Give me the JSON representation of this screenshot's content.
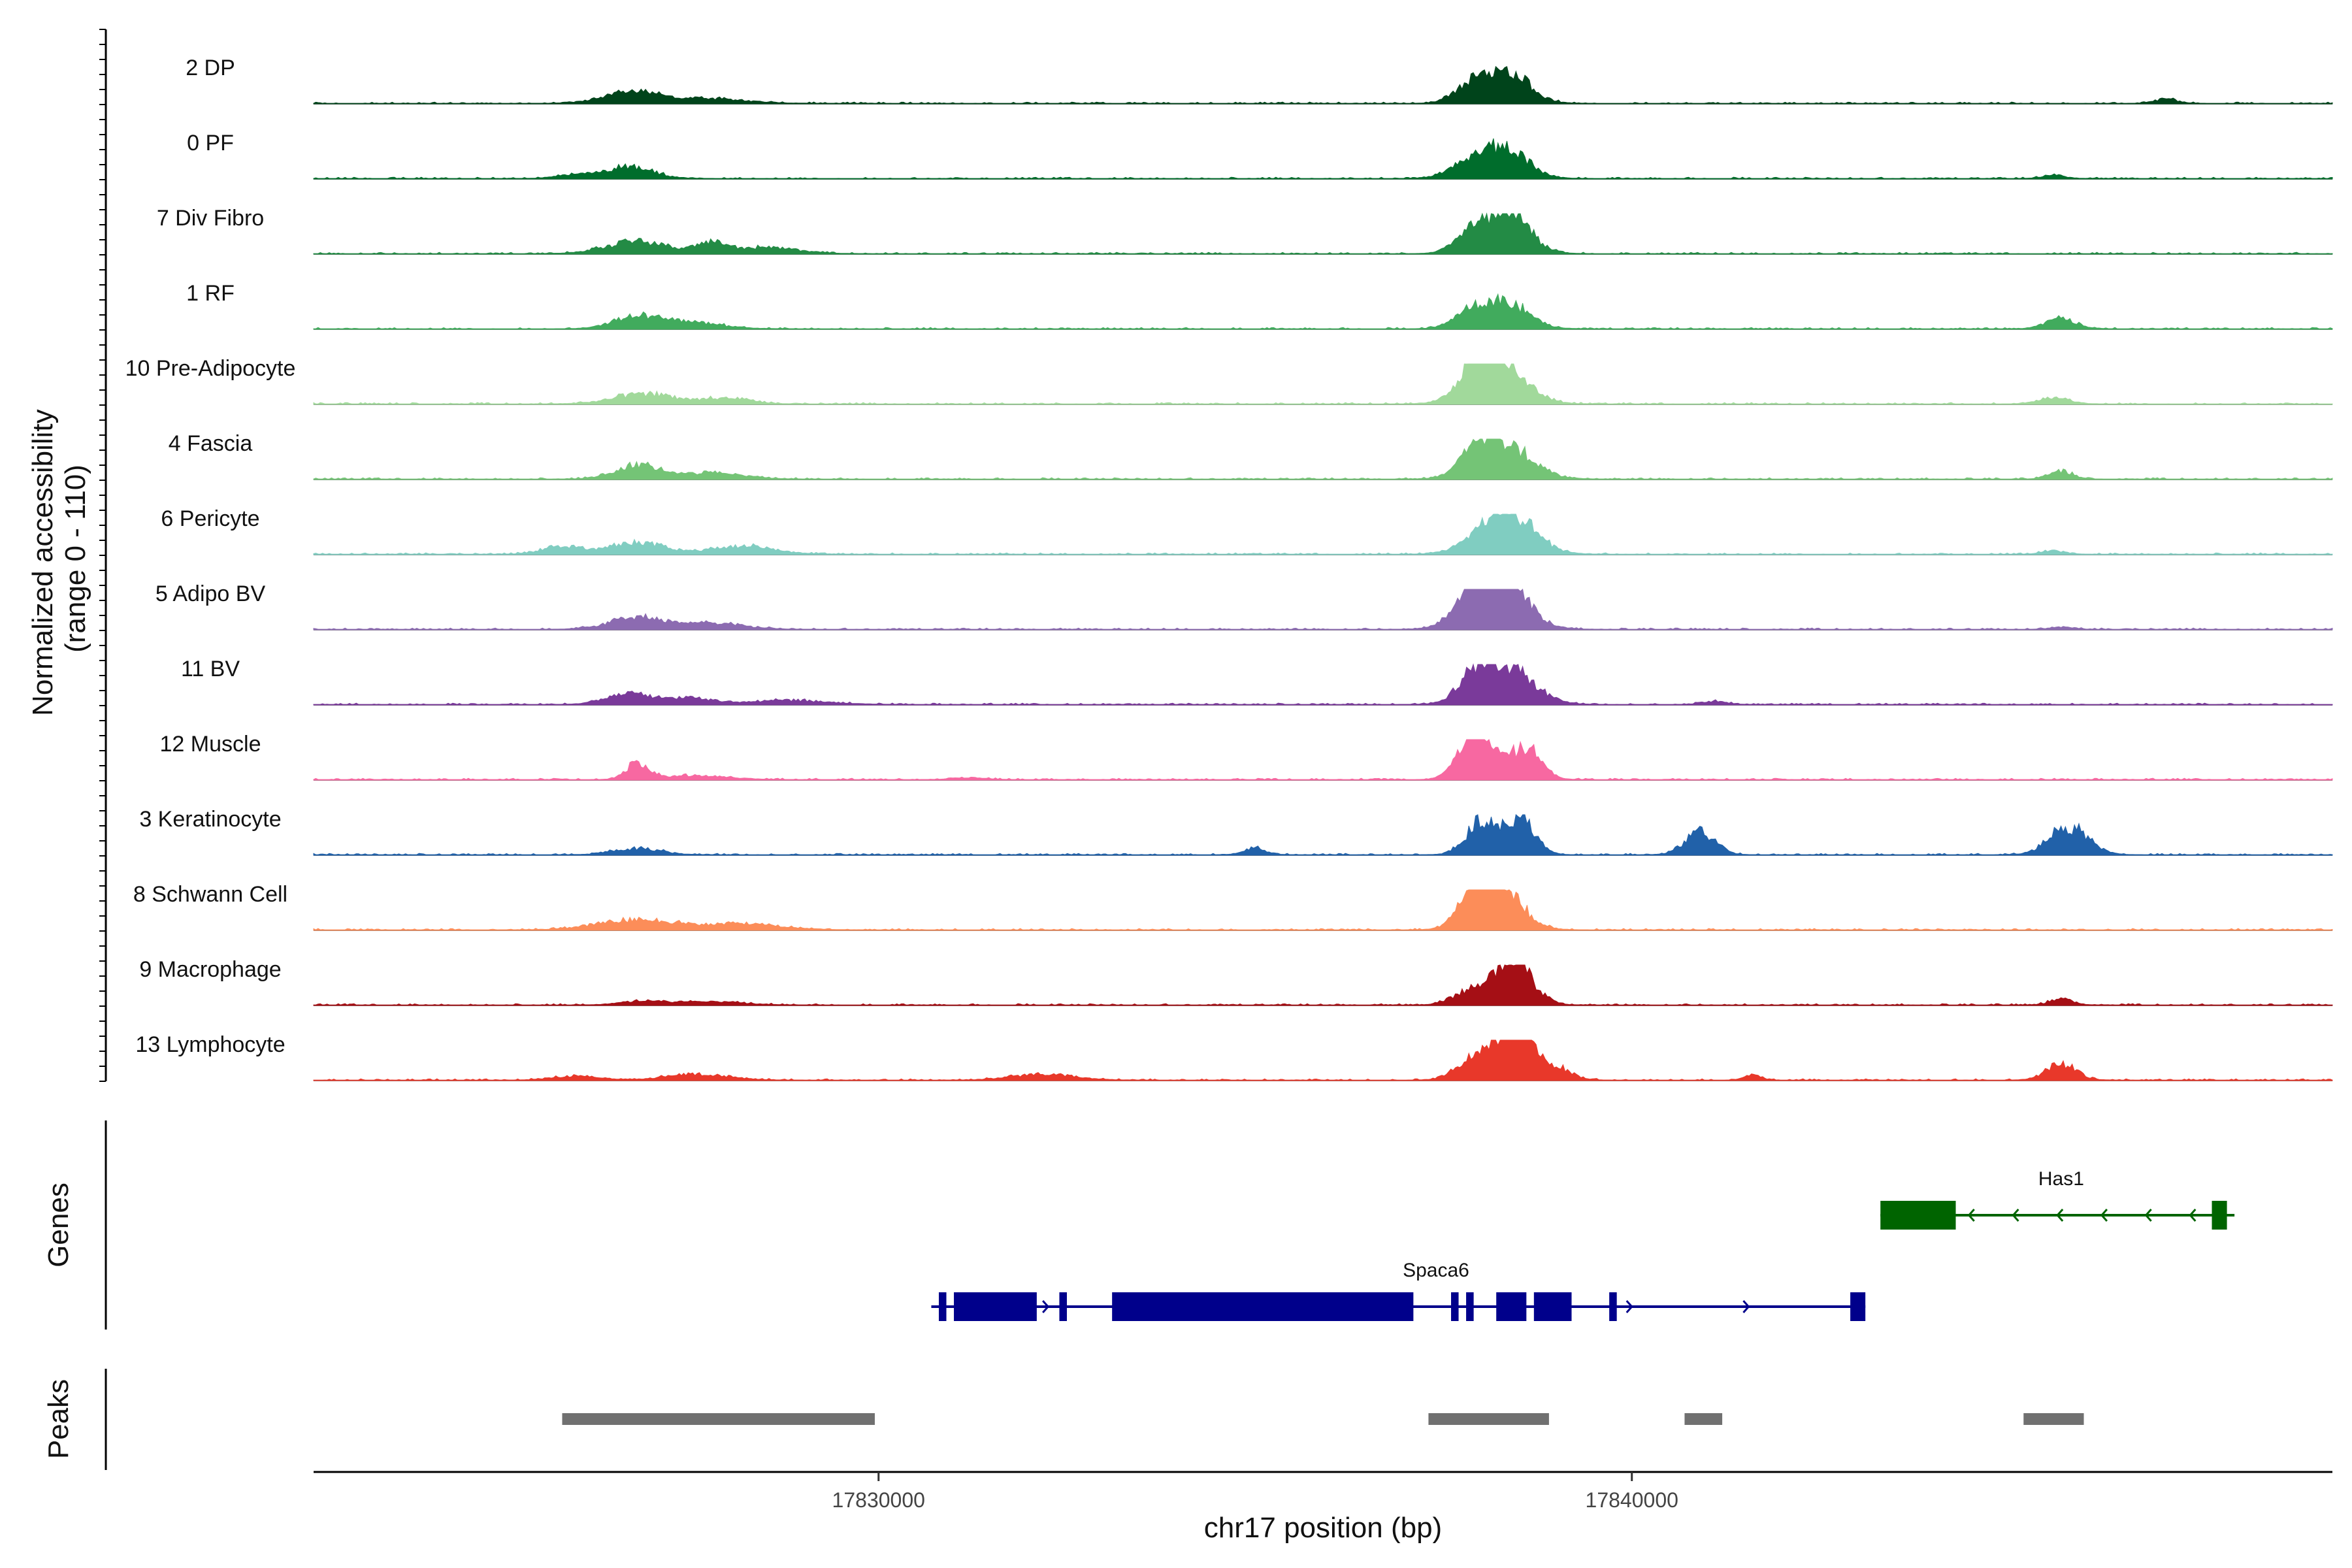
{
  "chart_data": {
    "type": "area",
    "title": "",
    "y_axis_title_lines": [
      "Normalized accessibility",
      "(range 0 - 110)"
    ],
    "y_range": [
      0,
      110
    ],
    "x_label": "chr17 position (bp)",
    "x_ticks": [
      {
        "value": 17830000,
        "label": "17830000"
      },
      {
        "value": 17840000,
        "label": "17840000"
      }
    ],
    "x_range": [
      17822500,
      17849300
    ],
    "series": [
      {
        "name": "2 DP",
        "color": "#00441b",
        "peaks": [
          [
            17826700,
            0.3,
            350
          ],
          [
            17827700,
            0.12,
            500
          ],
          [
            17838300,
            0.85,
            300
          ],
          [
            17837800,
            0.3,
            200
          ],
          [
            17847100,
            0.1,
            150
          ]
        ]
      },
      {
        "name": "0 PF",
        "color": "#006d2c",
        "peaks": [
          [
            17826700,
            0.3,
            300
          ],
          [
            17826000,
            0.1,
            250
          ],
          [
            17838300,
            0.75,
            300
          ],
          [
            17837800,
            0.3,
            250
          ],
          [
            17845600,
            0.08,
            150
          ]
        ]
      },
      {
        "name": "7 Div Fibro",
        "color": "#238b45",
        "peaks": [
          [
            17826800,
            0.3,
            400
          ],
          [
            17827800,
            0.25,
            200
          ],
          [
            17828500,
            0.15,
            400
          ],
          [
            17838300,
            1.1,
            300
          ],
          [
            17837800,
            0.3,
            200
          ]
        ]
      },
      {
        "name": "1 RF",
        "color": "#41ab5d",
        "peaks": [
          [
            17826800,
            0.3,
            300
          ],
          [
            17827500,
            0.15,
            400
          ],
          [
            17838300,
            0.7,
            300
          ],
          [
            17837800,
            0.3,
            200
          ],
          [
            17845700,
            0.25,
            200
          ]
        ]
      },
      {
        "name": "10 Pre-Adipocyte",
        "color": "#a1d99b",
        "peaks": [
          [
            17826900,
            0.25,
            400
          ],
          [
            17828000,
            0.15,
            300
          ],
          [
            17838200,
            1.1,
            350
          ],
          [
            17837900,
            0.6,
            150
          ],
          [
            17845600,
            0.15,
            200
          ]
        ]
      },
      {
        "name": "4 Fascia",
        "color": "#74c476",
        "peaks": [
          [
            17826800,
            0.35,
            300
          ],
          [
            17827800,
            0.15,
            400
          ],
          [
            17838300,
            0.9,
            350
          ],
          [
            17837900,
            0.4,
            200
          ],
          [
            17845700,
            0.2,
            150
          ]
        ]
      },
      {
        "name": "6 Pericyte",
        "color": "#80cdc1",
        "peaks": [
          [
            17825800,
            0.2,
            250
          ],
          [
            17826800,
            0.3,
            350
          ],
          [
            17828200,
            0.2,
            400
          ],
          [
            17838300,
            1.15,
            350
          ],
          [
            17845600,
            0.08,
            150
          ]
        ]
      },
      {
        "name": "5 Adipo BV",
        "color": "#8c6bb1",
        "peaks": [
          [
            17826800,
            0.3,
            350
          ],
          [
            17827800,
            0.15,
            400
          ],
          [
            17838200,
            1.45,
            350
          ],
          [
            17837900,
            0.5,
            200
          ],
          [
            17845700,
            0.05,
            150
          ]
        ]
      },
      {
        "name": "11 BV",
        "color": "#7a3a9a",
        "peaks": [
          [
            17826700,
            0.25,
            300
          ],
          [
            17827500,
            0.15,
            300
          ],
          [
            17828800,
            0.1,
            500
          ],
          [
            17838300,
            1.0,
            350
          ],
          [
            17837900,
            0.4,
            200
          ],
          [
            17841100,
            0.08,
            150
          ]
        ]
      },
      {
        "name": "12 Muscle",
        "color": "#f768a1",
        "peaks": [
          [
            17826800,
            0.4,
            150
          ],
          [
            17827600,
            0.1,
            400
          ],
          [
            17838000,
            1.25,
            200
          ],
          [
            17838600,
            0.8,
            200
          ],
          [
            17837700,
            0.3,
            150
          ],
          [
            17831200,
            0.05,
            200
          ]
        ]
      },
      {
        "name": "3 Keratinocyte",
        "color": "#2161a9",
        "peaks": [
          [
            17826800,
            0.15,
            300
          ],
          [
            17838000,
            0.8,
            200
          ],
          [
            17838500,
            0.85,
            200
          ],
          [
            17840900,
            0.55,
            200
          ],
          [
            17845800,
            0.7,
            250
          ],
          [
            17835000,
            0.15,
            150
          ]
        ]
      },
      {
        "name": "8 Schwann Cell",
        "color": "#fc8d59",
        "peaks": [
          [
            17826800,
            0.25,
            500
          ],
          [
            17828200,
            0.15,
            500
          ],
          [
            17838200,
            1.2,
            300
          ],
          [
            17837900,
            0.5,
            200
          ]
        ]
      },
      {
        "name": "9 Macrophage",
        "color": "#a50f15",
        "peaks": [
          [
            17826900,
            0.1,
            300
          ],
          [
            17827800,
            0.08,
            400
          ],
          [
            17838400,
            1.25,
            250
          ],
          [
            17837800,
            0.3,
            200
          ],
          [
            17845700,
            0.15,
            150
          ]
        ]
      },
      {
        "name": "13 Lymphocyte",
        "color": "#e8382a",
        "peaks": [
          [
            17826000,
            0.1,
            300
          ],
          [
            17827600,
            0.15,
            400
          ],
          [
            17832200,
            0.15,
            400
          ],
          [
            17838000,
            0.8,
            250
          ],
          [
            17838500,
            1.25,
            200
          ],
          [
            17839000,
            0.3,
            200
          ],
          [
            17845700,
            0.4,
            200
          ],
          [
            17841600,
            0.15,
            100
          ]
        ]
      }
    ],
    "genes": {
      "track_label": "Genes",
      "items": [
        {
          "name": "Has1",
          "strand": "-",
          "color": "#006400",
          "start": 17843300,
          "end": 17848000,
          "exons": [
            [
              17843300,
              17844300
            ],
            [
              17847700,
              17847900
            ]
          ]
        },
        {
          "name": "Spaca6",
          "strand": "+",
          "color": "#00008b",
          "start": 17830700,
          "end": 17843100,
          "exons": [
            [
              17830800,
              17830900
            ],
            [
              17831000,
              17832100
            ],
            [
              17832400,
              17832500
            ],
            [
              17833100,
              17837100
            ],
            [
              17837600,
              17837700
            ],
            [
              17837800,
              17837900
            ],
            [
              17838200,
              17838600
            ],
            [
              17838700,
              17839200
            ],
            [
              17839700,
              17839800
            ],
            [
              17842900,
              17843100
            ]
          ]
        }
      ]
    },
    "peaks_track": {
      "track_label": "Peaks",
      "color": "#707070",
      "regions": [
        [
          17825800,
          17829950
        ],
        [
          17837300,
          17838900
        ],
        [
          17840700,
          17841200
        ],
        [
          17845200,
          17846000
        ]
      ]
    }
  }
}
